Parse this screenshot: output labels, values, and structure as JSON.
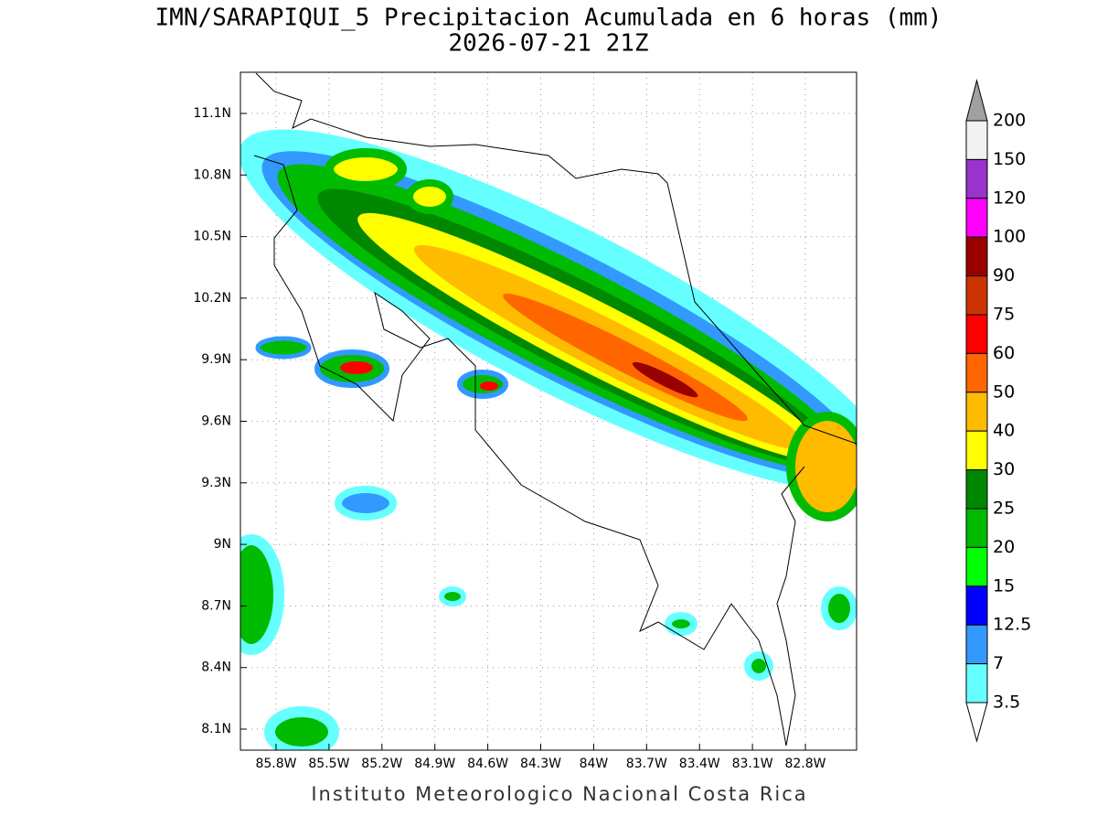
{
  "header": {
    "title": "IMN/SARAPIQUI_5 Precipitacion Acumulada en 6 horas (mm)",
    "subtitle": "2026-07-21 21Z"
  },
  "map": {
    "lat_labels": [
      "11.1N",
      "10.8N",
      "10.5N",
      "10.2N",
      "9.9N",
      "9.6N",
      "9.3N",
      "9N",
      "8.7N",
      "8.4N",
      "8.1N"
    ],
    "lon_labels": [
      "85.8W",
      "85.5W",
      "85.2W",
      "84.9W",
      "84.6W",
      "84.3W",
      "84W",
      "83.7W",
      "83.4W",
      "83.1W",
      "82.8W"
    ]
  },
  "colorbar": {
    "levels": [
      "200",
      "150",
      "120",
      "100",
      "90",
      "75",
      "60",
      "50",
      "40",
      "30",
      "25",
      "20",
      "15",
      "12.5",
      "7",
      "3.5"
    ],
    "colors": [
      "#f2f2f2",
      "#9933cc",
      "#ff00ff",
      "#990000",
      "#cc3300",
      "#ff0000",
      "#ff6600",
      "#ffbb00",
      "#ffff00",
      "#008800",
      "#00bb00",
      "#00ff00",
      "#0000ff",
      "#3399ff",
      "#66ffff"
    ]
  },
  "footer": {
    "credit": "Instituto Meteorologico Nacional Costa Rica"
  }
}
